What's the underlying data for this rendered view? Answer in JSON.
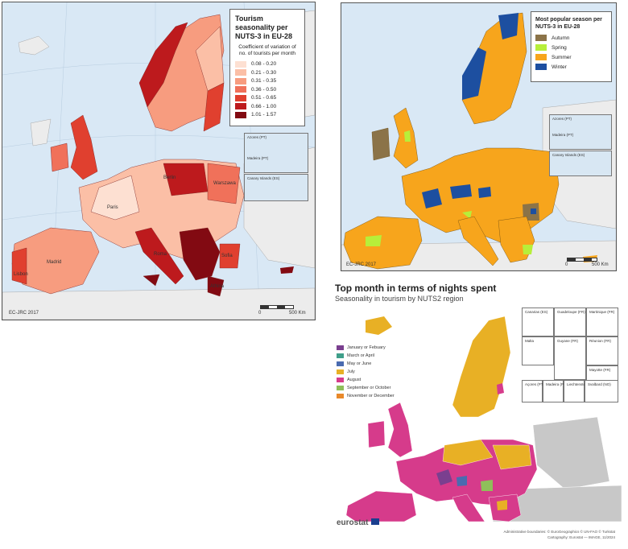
{
  "map1": {
    "title": "Tourism seasonality per NUTS-3 in EU-28",
    "subtitle": "Coefficient of variation of no. of tourists per month",
    "legend": [
      {
        "label": "0.08 - 0.20",
        "color": "#fde0d2"
      },
      {
        "label": "0.21 - 0.30",
        "color": "#fbbfa6"
      },
      {
        "label": "0.31 - 0.35",
        "color": "#f79c7f"
      },
      {
        "label": "0.36 - 0.50",
        "color": "#f0715a"
      },
      {
        "label": "0.51 - 0.65",
        "color": "#e0402f"
      },
      {
        "label": "0.66 - 1.00",
        "color": "#bd1a1d"
      },
      {
        "label": "1.01 - 1.57",
        "color": "#820a12"
      }
    ],
    "insets": [
      "Azores (PT)",
      "Madeira (PT)",
      "Canary Islands (ES)"
    ],
    "credit": "EC-JRC 2017",
    "scale_start": "0",
    "scale_end": "500 Km",
    "place_labels": [
      "Paris",
      "Lisbon",
      "Madrid",
      "Roma",
      "Berlin",
      "Warszawa",
      "Sofia",
      "Athina"
    ]
  },
  "map2": {
    "title": "Most popular season per NUTS-3 in EU-28",
    "legend": [
      {
        "label": "Autumn",
        "color": "#8b7348"
      },
      {
        "label": "Spring",
        "color": "#b7ef3a"
      },
      {
        "label": "Summer",
        "color": "#f7a51c"
      },
      {
        "label": "Winter",
        "color": "#1d4fa0"
      }
    ],
    "insets": [
      "Azores (PT)",
      "Madeira (PT)",
      "Canary Islands (ES)"
    ],
    "credit": "EC-JRC 2017",
    "scale_start": "0",
    "scale_end": "500 Km"
  },
  "map3": {
    "title": "Top month in terms of nights spent",
    "subtitle": "Seasonality in tourism by NUTS2 region",
    "legend": [
      {
        "label": "January or Febuary",
        "color": "#7a3f8f"
      },
      {
        "label": "March or April",
        "color": "#3f9f8a"
      },
      {
        "label": "May or June",
        "color": "#4a6bb0"
      },
      {
        "label": "July",
        "color": "#e8b025"
      },
      {
        "label": "August",
        "color": "#d63b8b"
      },
      {
        "label": "September or October",
        "color": "#8fbf5a"
      },
      {
        "label": "November or December",
        "color": "#e8892a"
      }
    ],
    "insets": [
      "Canarias (ES)",
      "Guadeloupe (FR)",
      "Martinique (FR)",
      "Réunion (FR)",
      "Malta",
      "Guyane (FR)",
      "Mayotte (FR)",
      "Açores (PT)",
      "Madeira (PT)",
      "Liechtenstein",
      "Svalbard (NO)"
    ],
    "brand": "eurostat",
    "credit_line1": "Administrative boundaries: © EuroGeographics © UN-FAO © Turkstat",
    "credit_line2": "Cartography: Eurostat — IMAGE, 11/2024"
  },
  "colors": {
    "sea": "#d9e8f5",
    "nonEU": "#ececec",
    "nonEU3": "#c8c8c8"
  }
}
